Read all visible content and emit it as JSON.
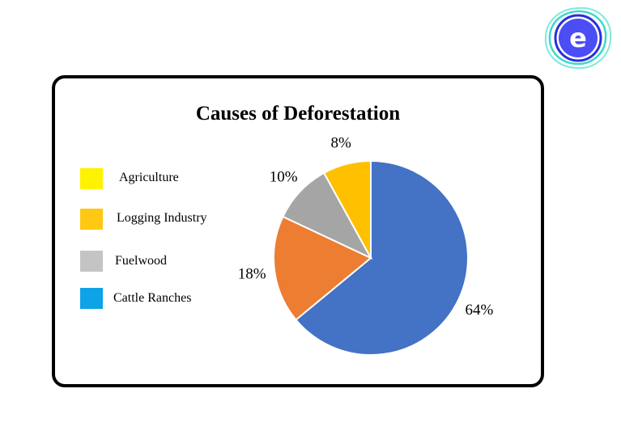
{
  "brand": {
    "icon": "e-logo-icon",
    "letter": "e",
    "accent": "#4B4EF5",
    "ring": "#3FD9C9"
  },
  "chart_data": {
    "type": "pie",
    "title": "Causes of Deforestation",
    "legend": [
      {
        "label": "Agriculture",
        "color": "#FFF200"
      },
      {
        "label": "Logging Industry",
        "color": "#FFC814"
      },
      {
        "label": "Fuelwood",
        "color": "#C4C4C4"
      },
      {
        "label": "Cattle Ranches",
        "color": "#0EA2E6"
      }
    ],
    "slices": [
      {
        "value": 64,
        "label": "64%",
        "color": "#4472C4"
      },
      {
        "value": 18,
        "label": "18%",
        "color": "#ED7D31"
      },
      {
        "value": 10,
        "label": "10%",
        "color": "#A5A5A5"
      },
      {
        "value": 8,
        "label": "8%",
        "color": "#FFC000"
      }
    ],
    "legend_position": "left"
  }
}
